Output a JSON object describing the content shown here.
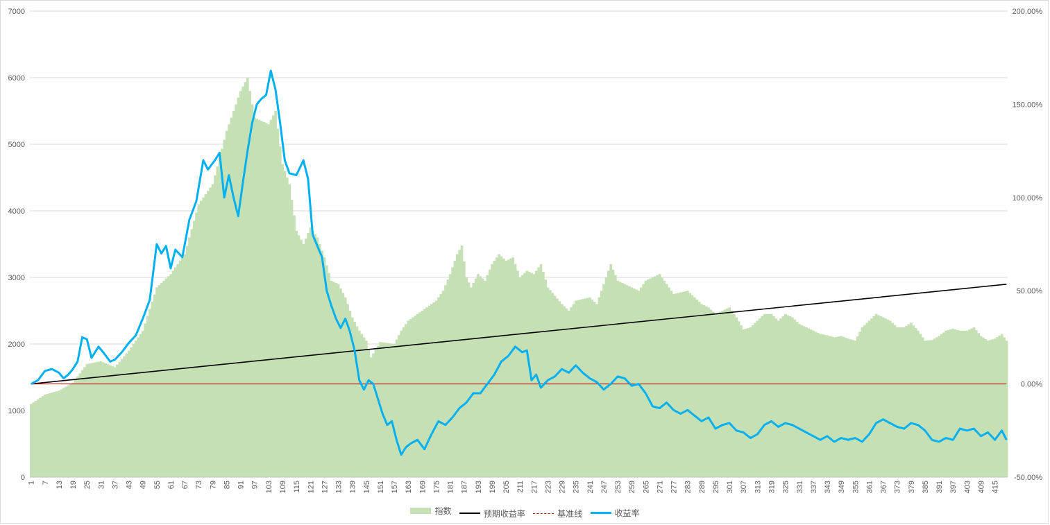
{
  "chart_data": {
    "type": "bar+line",
    "n_points": 420,
    "x_tick_step": 6,
    "left_axis": {
      "min": 0,
      "max": 7000,
      "step": 1000
    },
    "right_axis": {
      "min": -50,
      "max": 200,
      "step": 50,
      "format": "percent_2dp"
    },
    "series": [
      {
        "name": "指数",
        "kind": "bar",
        "axis": "left",
        "color": "#c5e0b4",
        "keyframes": [
          [
            1,
            1100
          ],
          [
            7,
            1240
          ],
          [
            13,
            1300
          ],
          [
            19,
            1420
          ],
          [
            25,
            1700
          ],
          [
            31,
            1740
          ],
          [
            37,
            1650
          ],
          [
            43,
            1900
          ],
          [
            49,
            2200
          ],
          [
            55,
            2850
          ],
          [
            61,
            3050
          ],
          [
            67,
            3350
          ],
          [
            73,
            4100
          ],
          [
            79,
            4400
          ],
          [
            85,
            5200
          ],
          [
            91,
            5800
          ],
          [
            94,
            6000
          ],
          [
            97,
            5400
          ],
          [
            103,
            5300
          ],
          [
            106,
            5500
          ],
          [
            109,
            4700
          ],
          [
            112,
            4400
          ],
          [
            115,
            3700
          ],
          [
            118,
            3500
          ],
          [
            121,
            3750
          ],
          [
            124,
            3600
          ],
          [
            127,
            3300
          ],
          [
            130,
            2950
          ],
          [
            133,
            2900
          ],
          [
            136,
            2700
          ],
          [
            139,
            2400
          ],
          [
            142,
            2200
          ],
          [
            145,
            2050
          ],
          [
            147,
            1800
          ],
          [
            151,
            2030
          ],
          [
            157,
            2000
          ],
          [
            160,
            2200
          ],
          [
            163,
            2350
          ],
          [
            169,
            2500
          ],
          [
            175,
            2650
          ],
          [
            178,
            2800
          ],
          [
            181,
            3050
          ],
          [
            184,
            3350
          ],
          [
            186,
            3480
          ],
          [
            188,
            3000
          ],
          [
            190,
            2850
          ],
          [
            193,
            3050
          ],
          [
            196,
            2950
          ],
          [
            199,
            3200
          ],
          [
            202,
            3350
          ],
          [
            205,
            3250
          ],
          [
            208,
            3300
          ],
          [
            211,
            3000
          ],
          [
            214,
            3100
          ],
          [
            217,
            3050
          ],
          [
            220,
            3200
          ],
          [
            223,
            2850
          ],
          [
            229,
            2600
          ],
          [
            232,
            2500
          ],
          [
            235,
            2650
          ],
          [
            241,
            2700
          ],
          [
            244,
            2600
          ],
          [
            247,
            2900
          ],
          [
            250,
            3200
          ],
          [
            253,
            2950
          ],
          [
            256,
            2900
          ],
          [
            259,
            2850
          ],
          [
            262,
            2800
          ],
          [
            265,
            2950
          ],
          [
            268,
            3000
          ],
          [
            271,
            3050
          ],
          [
            274,
            2900
          ],
          [
            277,
            2750
          ],
          [
            283,
            2800
          ],
          [
            286,
            2700
          ],
          [
            289,
            2600
          ],
          [
            292,
            2550
          ],
          [
            295,
            2450
          ],
          [
            298,
            2500
          ],
          [
            301,
            2550
          ],
          [
            304,
            2400
          ],
          [
            307,
            2220
          ],
          [
            310,
            2250
          ],
          [
            313,
            2350
          ],
          [
            316,
            2450
          ],
          [
            319,
            2450
          ],
          [
            322,
            2350
          ],
          [
            325,
            2450
          ],
          [
            328,
            2400
          ],
          [
            331,
            2300
          ],
          [
            334,
            2250
          ],
          [
            337,
            2200
          ],
          [
            340,
            2150
          ],
          [
            343,
            2130
          ],
          [
            346,
            2100
          ],
          [
            349,
            2120
          ],
          [
            352,
            2080
          ],
          [
            355,
            2050
          ],
          [
            358,
            2250
          ],
          [
            361,
            2350
          ],
          [
            364,
            2450
          ],
          [
            367,
            2400
          ],
          [
            370,
            2350
          ],
          [
            373,
            2250
          ],
          [
            376,
            2250
          ],
          [
            379,
            2320
          ],
          [
            382,
            2200
          ],
          [
            385,
            2050
          ],
          [
            388,
            2060
          ],
          [
            391,
            2120
          ],
          [
            394,
            2200
          ],
          [
            397,
            2230
          ],
          [
            400,
            2200
          ],
          [
            403,
            2200
          ],
          [
            406,
            2250
          ],
          [
            409,
            2120
          ],
          [
            412,
            2050
          ],
          [
            415,
            2080
          ],
          [
            418,
            2150
          ],
          [
            420,
            2050
          ]
        ]
      },
      {
        "name": "预期收益率",
        "kind": "line",
        "axis": "right",
        "color": "#000000",
        "start": 0.0,
        "end": 53.5
      },
      {
        "name": "基准线",
        "kind": "line",
        "axis": "right",
        "color": "#c00000",
        "dashed": true,
        "value": 0.0
      },
      {
        "name": "收益率",
        "kind": "line",
        "axis": "right",
        "color": "#00b0f0",
        "keyframes": [
          [
            1,
            0
          ],
          [
            4,
            2
          ],
          [
            7,
            7
          ],
          [
            10,
            8
          ],
          [
            13,
            6
          ],
          [
            15,
            3
          ],
          [
            17,
            5
          ],
          [
            19,
            8
          ],
          [
            21,
            12
          ],
          [
            23,
            25
          ],
          [
            25,
            24
          ],
          [
            27,
            14
          ],
          [
            30,
            20
          ],
          [
            32,
            17
          ],
          [
            35,
            12
          ],
          [
            37,
            13
          ],
          [
            40,
            17
          ],
          [
            43,
            22
          ],
          [
            46,
            26
          ],
          [
            49,
            35
          ],
          [
            52,
            45
          ],
          [
            55,
            75
          ],
          [
            57,
            70
          ],
          [
            59,
            74
          ],
          [
            61,
            62
          ],
          [
            63,
            72
          ],
          [
            66,
            68
          ],
          [
            69,
            88
          ],
          [
            72,
            98
          ],
          [
            75,
            120
          ],
          [
            77,
            115
          ],
          [
            80,
            120
          ],
          [
            82,
            124
          ],
          [
            84,
            100
          ],
          [
            86,
            112
          ],
          [
            88,
            100
          ],
          [
            90,
            90
          ],
          [
            92,
            108
          ],
          [
            94,
            125
          ],
          [
            96,
            140
          ],
          [
            98,
            150
          ],
          [
            100,
            153
          ],
          [
            102,
            155
          ],
          [
            104,
            168
          ],
          [
            106,
            158
          ],
          [
            108,
            140
          ],
          [
            110,
            120
          ],
          [
            112,
            113
          ],
          [
            115,
            112
          ],
          [
            118,
            120
          ],
          [
            120,
            110
          ],
          [
            122,
            80
          ],
          [
            124,
            74
          ],
          [
            126,
            68
          ],
          [
            128,
            50
          ],
          [
            130,
            42
          ],
          [
            132,
            35
          ],
          [
            134,
            30
          ],
          [
            136,
            35
          ],
          [
            138,
            28
          ],
          [
            140,
            18
          ],
          [
            142,
            2
          ],
          [
            144,
            -3
          ],
          [
            146,
            2
          ],
          [
            148,
            0
          ],
          [
            150,
            -8
          ],
          [
            152,
            -16
          ],
          [
            154,
            -22
          ],
          [
            156,
            -20
          ],
          [
            158,
            -30
          ],
          [
            160,
            -38
          ],
          [
            162,
            -34
          ],
          [
            164,
            -32
          ],
          [
            167,
            -30
          ],
          [
            170,
            -35
          ],
          [
            173,
            -27
          ],
          [
            176,
            -20
          ],
          [
            179,
            -22
          ],
          [
            182,
            -18
          ],
          [
            185,
            -13
          ],
          [
            188,
            -10
          ],
          [
            191,
            -5
          ],
          [
            194,
            -5
          ],
          [
            197,
            0
          ],
          [
            200,
            5
          ],
          [
            203,
            12
          ],
          [
            206,
            15
          ],
          [
            209,
            20
          ],
          [
            212,
            17
          ],
          [
            214,
            18
          ],
          [
            216,
            2
          ],
          [
            218,
            5
          ],
          [
            220,
            -2
          ],
          [
            223,
            2
          ],
          [
            226,
            4
          ],
          [
            229,
            8
          ],
          [
            232,
            6
          ],
          [
            235,
            10
          ],
          [
            238,
            6
          ],
          [
            241,
            3
          ],
          [
            244,
            1
          ],
          [
            247,
            -3
          ],
          [
            250,
            0
          ],
          [
            253,
            4
          ],
          [
            256,
            3
          ],
          [
            259,
            -1
          ],
          [
            262,
            0
          ],
          [
            265,
            -5
          ],
          [
            268,
            -12
          ],
          [
            271,
            -13
          ],
          [
            274,
            -10
          ],
          [
            277,
            -14
          ],
          [
            280,
            -16
          ],
          [
            283,
            -14
          ],
          [
            286,
            -17
          ],
          [
            289,
            -20
          ],
          [
            292,
            -18
          ],
          [
            295,
            -24
          ],
          [
            298,
            -22
          ],
          [
            301,
            -21
          ],
          [
            304,
            -25
          ],
          [
            307,
            -26
          ],
          [
            310,
            -29
          ],
          [
            313,
            -27
          ],
          [
            316,
            -22
          ],
          [
            319,
            -20
          ],
          [
            322,
            -23
          ],
          [
            325,
            -21
          ],
          [
            328,
            -22
          ],
          [
            331,
            -24
          ],
          [
            334,
            -26
          ],
          [
            337,
            -28
          ],
          [
            340,
            -30
          ],
          [
            343,
            -28
          ],
          [
            346,
            -31
          ],
          [
            349,
            -29
          ],
          [
            352,
            -30
          ],
          [
            355,
            -29
          ],
          [
            358,
            -31
          ],
          [
            361,
            -27
          ],
          [
            364,
            -21
          ],
          [
            367,
            -19
          ],
          [
            370,
            -21
          ],
          [
            373,
            -23
          ],
          [
            376,
            -24
          ],
          [
            379,
            -21
          ],
          [
            382,
            -22
          ],
          [
            385,
            -25
          ],
          [
            388,
            -30
          ],
          [
            391,
            -31
          ],
          [
            394,
            -29
          ],
          [
            397,
            -30
          ],
          [
            400,
            -24
          ],
          [
            403,
            -25
          ],
          [
            406,
            -24
          ],
          [
            409,
            -28
          ],
          [
            412,
            -26
          ],
          [
            415,
            -30
          ],
          [
            418,
            -25
          ],
          [
            420,
            -30
          ]
        ]
      }
    ],
    "legend_position": "bottom"
  },
  "legend": {
    "items": [
      "指数",
      "预期收益率",
      "基准线",
      "收益率"
    ]
  }
}
